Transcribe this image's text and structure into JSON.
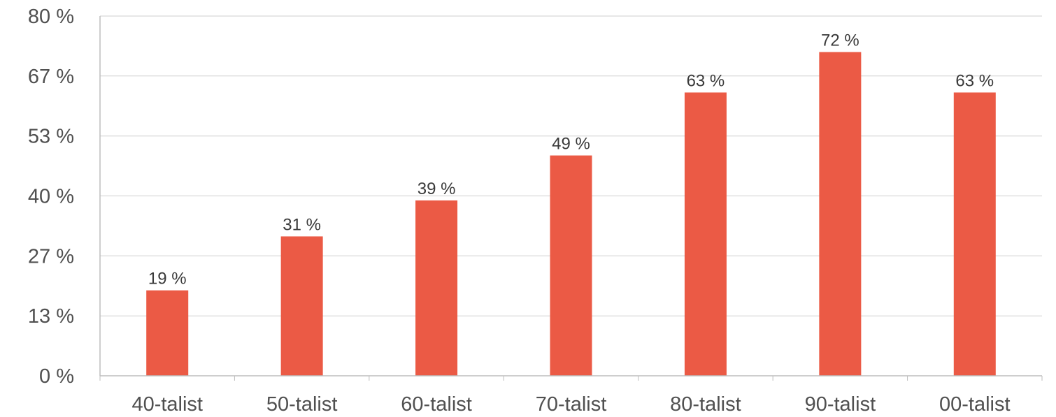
{
  "chart_data": {
    "type": "bar",
    "categories": [
      "40-talist",
      "50-talist",
      "60-talist",
      "70-talist",
      "80-talist",
      "90-talist",
      "00-talist"
    ],
    "values": [
      19,
      31,
      39,
      49,
      63,
      72,
      63
    ],
    "value_labels": [
      "19 %",
      "31 %",
      "39 %",
      "49 %",
      "63 %",
      "72 %",
      "63 %"
    ],
    "y_ticks": [
      0,
      13.33,
      26.67,
      40,
      53.33,
      66.67,
      80
    ],
    "y_tick_labels": [
      "0 %",
      "13 %",
      "27 %",
      "40 %",
      "53 %",
      "67 %",
      "80 %"
    ],
    "ylim": [
      0,
      80
    ],
    "grid": true,
    "bar_color": "#eb5a45",
    "title": "",
    "xlabel": "",
    "ylabel": ""
  }
}
